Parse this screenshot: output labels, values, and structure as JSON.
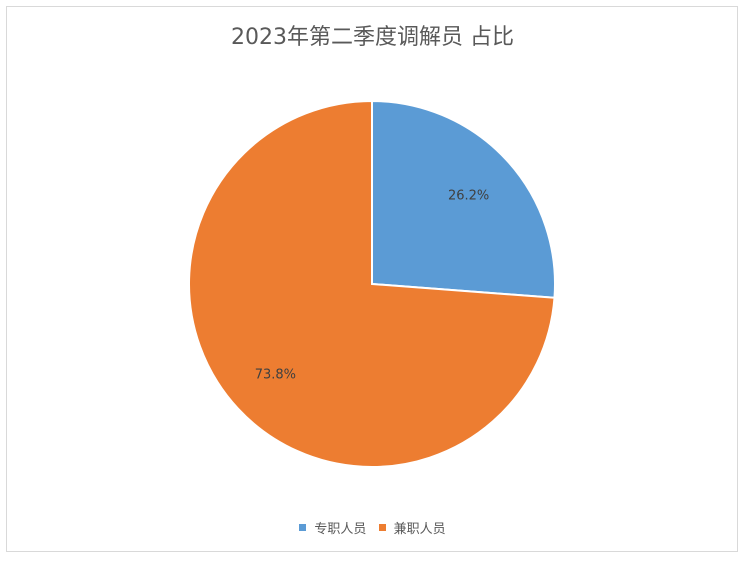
{
  "chart_data": {
    "type": "pie",
    "title": "2023年第二季度调解员 占比",
    "categories": [
      "专职人员",
      "兼职人员"
    ],
    "values": [
      26.2,
      73.8
    ],
    "data_labels": [
      "26.2%",
      "73.8%"
    ],
    "colors": [
      "#5B9BD5",
      "#ED7D31"
    ],
    "legend_position": "bottom"
  }
}
